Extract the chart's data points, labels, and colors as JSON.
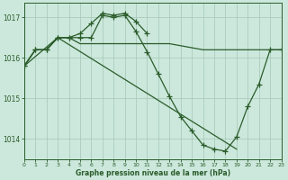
{
  "xlabel": "Graphe pression niveau de la mer (hPa)",
  "xlim": [
    0,
    23
  ],
  "ylim": [
    1013.5,
    1017.35
  ],
  "yticks": [
    1014,
    1015,
    1016,
    1017
  ],
  "ytick_labels": [
    "1014",
    "1015",
    "1016",
    "1017"
  ],
  "xticks": [
    0,
    1,
    2,
    3,
    4,
    5,
    6,
    7,
    8,
    9,
    10,
    11,
    12,
    13,
    14,
    15,
    16,
    17,
    18,
    19,
    20,
    21,
    22,
    23
  ],
  "background_color": "#cce8dc",
  "grid_color": "#aaccbb",
  "line_color": "#2a5c2a",
  "series": [
    {
      "x": [
        0,
        1,
        2,
        3,
        4,
        5,
        6,
        7,
        8,
        9,
        10,
        11,
        12,
        13,
        14,
        15,
        16,
        17,
        18,
        19,
        20,
        21,
        22,
        23
      ],
      "y": [
        1015.8,
        1016.2,
        1016.2,
        1016.5,
        1016.5,
        1016.5,
        1016.5,
        1017.05,
        1017.0,
        1017.05,
        1016.65,
        1016.15,
        1015.6,
        1015.05,
        1014.55,
        1014.2,
        1013.85,
        1013.75,
        1013.7,
        1014.05,
        1014.8,
        1015.35,
        1016.2,
        1016.2
      ],
      "marker": true
    },
    {
      "x": [
        0,
        1,
        2,
        3,
        4,
        5,
        6,
        7,
        8,
        9,
        10,
        11,
        12,
        13,
        14,
        15,
        16,
        17,
        18,
        19,
        20,
        21,
        22,
        23
      ],
      "y": [
        1015.8,
        1016.2,
        1016.2,
        1016.5,
        1016.5,
        1016.35,
        1016.35,
        1016.35,
        1016.35,
        1016.35,
        1016.35,
        1016.35,
        1016.35,
        1016.35,
        1016.3,
        1016.25,
        1016.2,
        1016.2,
        1016.2,
        1016.2,
        1016.2,
        1016.2,
        1016.2,
        1016.2
      ],
      "marker": false
    },
    {
      "x": [
        0,
        1,
        2,
        3,
        4,
        5,
        6,
        7,
        8,
        9,
        10,
        11
      ],
      "y": [
        1015.8,
        1016.2,
        1016.2,
        1016.5,
        1016.5,
        1016.6,
        1016.85,
        1017.1,
        1017.05,
        1017.1,
        1016.9,
        1016.6
      ],
      "marker": true
    },
    {
      "x": [
        0,
        3,
        19
      ],
      "y": [
        1015.8,
        1016.5,
        1013.75
      ],
      "marker": false
    }
  ]
}
